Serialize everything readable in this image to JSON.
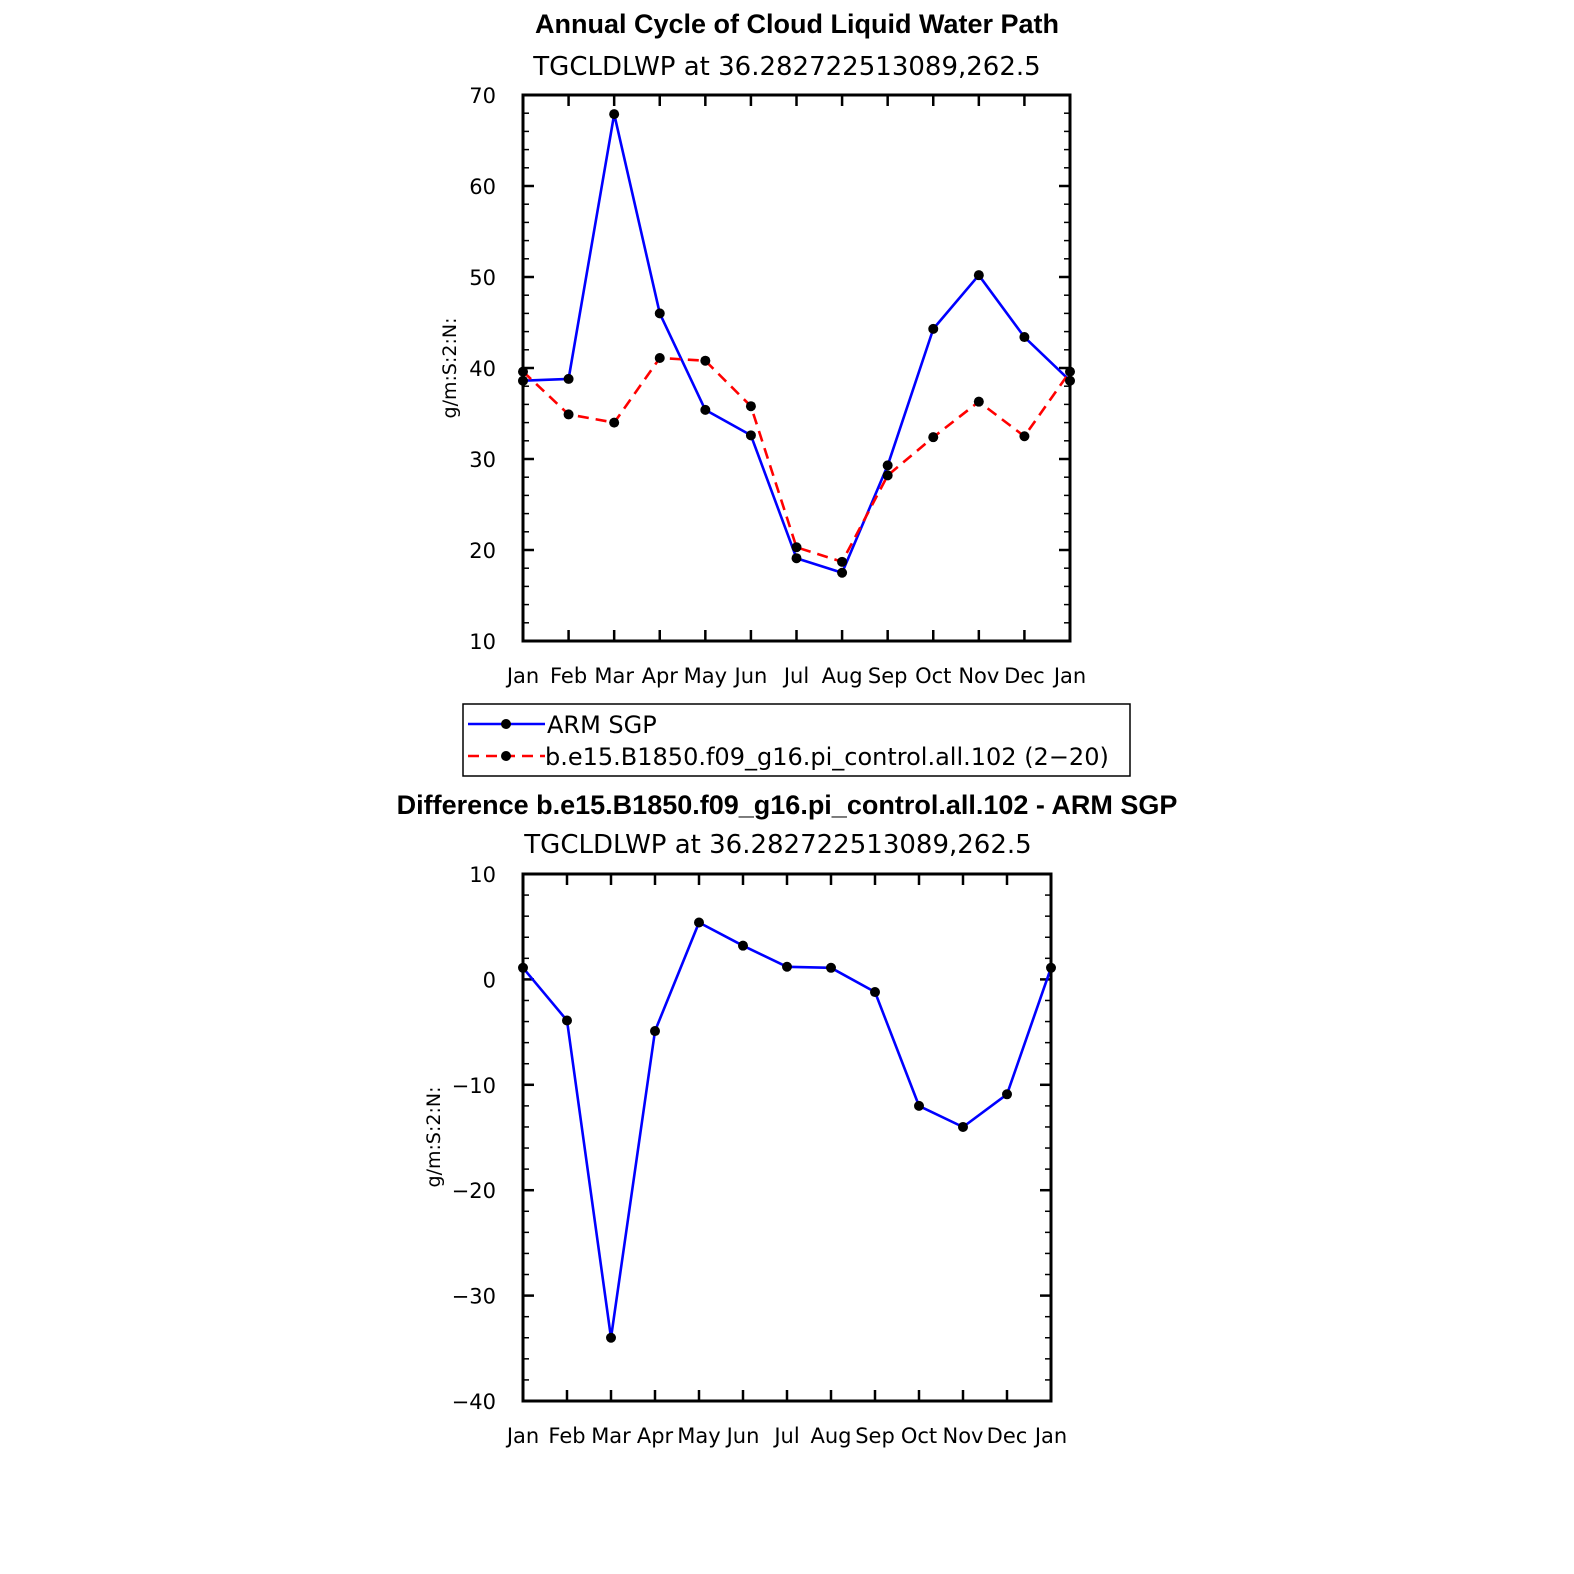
{
  "chart_data": [
    {
      "type": "line",
      "title": "Annual Cycle of Cloud Liquid Water Path",
      "subtitle": "TGCLDLWP at 36.282722513089,262.5",
      "xlabel": "",
      "ylabel": "g/m:S:2:N:",
      "categories": [
        "Jan",
        "Feb",
        "Mar",
        "Apr",
        "May",
        "Jun",
        "Jul",
        "Aug",
        "Sep",
        "Oct",
        "Nov",
        "Dec",
        "Jan"
      ],
      "ylim": [
        10,
        70
      ],
      "yticks": [
        "10",
        "20",
        "30",
        "40",
        "50",
        "60",
        "70"
      ],
      "series": [
        {
          "name": "ARM SGP",
          "color": "#0000ff",
          "style": "solid",
          "values": [
            38.6,
            38.8,
            67.9,
            46.0,
            35.4,
            32.6,
            19.1,
            17.5,
            29.3,
            44.3,
            50.2,
            43.4,
            38.6
          ]
        },
        {
          "name": "b.e15.B1850.f09_g16.pi_control.all.102 (2−20)",
          "color": "#ff0000",
          "style": "dashed",
          "values": [
            39.6,
            34.9,
            34.0,
            41.1,
            40.8,
            35.8,
            20.3,
            18.7,
            28.2,
            32.4,
            36.3,
            32.5,
            39.6
          ]
        }
      ],
      "legend": "below"
    },
    {
      "type": "line",
      "title": "Difference b.e15.B1850.f09_g16.pi_control.all.102 - ARM SGP",
      "subtitle": "TGCLDLWP at 36.282722513089,262.5",
      "xlabel": "",
      "ylabel": "g/m:S:2:N:",
      "categories": [
        "Jan",
        "Feb",
        "Mar",
        "Apr",
        "May",
        "Jun",
        "Jul",
        "Aug",
        "Sep",
        "Oct",
        "Nov",
        "Dec",
        "Jan"
      ],
      "ylim": [
        -40,
        10
      ],
      "yticks": [
        "−40",
        "−30",
        "−20",
        "−10",
        "0",
        "10"
      ],
      "series": [
        {
          "name": "Difference",
          "color": "#0000ff",
          "style": "solid",
          "values": [
            1.1,
            -3.9,
            -34.0,
            -4.9,
            5.4,
            3.2,
            1.2,
            1.1,
            -1.2,
            -12.0,
            -14.0,
            -10.9,
            1.1
          ]
        }
      ]
    }
  ]
}
